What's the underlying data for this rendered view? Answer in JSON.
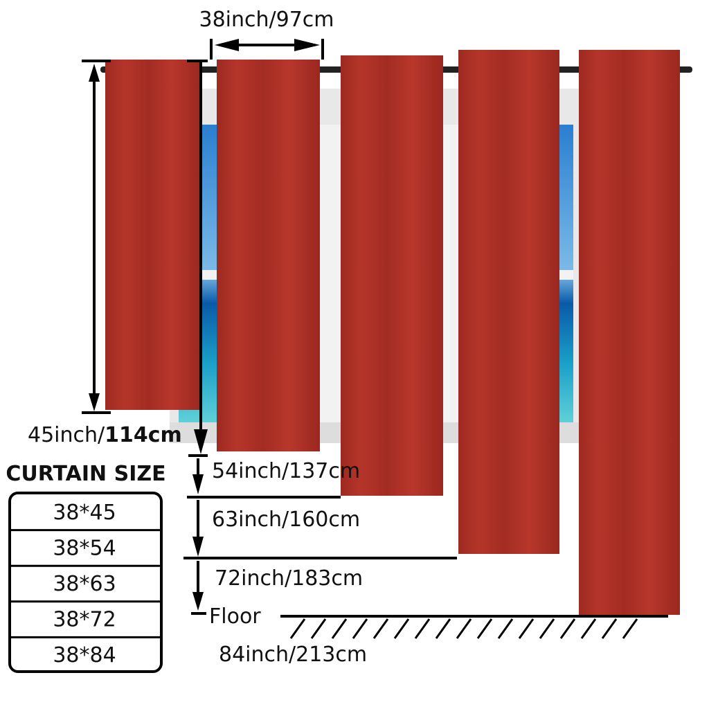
{
  "width_label": "38inch/97cm",
  "lengths": {
    "l45": [
      "45inch/",
      "114cm"
    ],
    "l54": "54inch/137cm",
    "l63": "63inch/160cm",
    "l72": "72inch/183cm",
    "l84": "84inch/213cm"
  },
  "floor": "Floor",
  "table": {
    "title": "CURTAIN SIZE",
    "rows": [
      "38*45",
      "38*54",
      "38*63",
      "38*72",
      "38*84"
    ]
  }
}
